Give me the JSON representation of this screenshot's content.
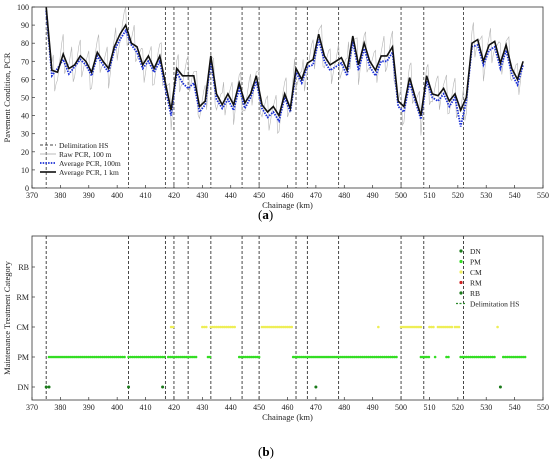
{
  "panel_a": {
    "label_open": "(",
    "label_letter": "a",
    "label_close": ")",
    "legend": {
      "items": [
        {
          "label": "Delimitation HS",
          "color": "#444444"
        },
        {
          "label": "Raw PCR, 100 m",
          "color": "#aaaaaa"
        },
        {
          "label": "Average PCR, 100m",
          "color": "#1a2fd6"
        },
        {
          "label": "Average PCR, 1 km",
          "color": "#000000"
        }
      ]
    }
  },
  "panel_b": {
    "label_open": "(",
    "label_letter": "b",
    "label_close": ")",
    "legend": {
      "items": [
        {
          "label": "DN",
          "color": "#1a7a1a"
        },
        {
          "label": "PM",
          "color": "#33dd22"
        },
        {
          "label": "CM",
          "color": "#f0f060"
        },
        {
          "label": "RM",
          "color": "#d02020"
        },
        {
          "label": "RB",
          "color": "#1a7a1a"
        },
        {
          "label": "Delimitation HS",
          "color": "#2a8a2a"
        }
      ]
    }
  },
  "chart_data": [
    {
      "type": "line",
      "xlabel": "Chainage (km)",
      "ylabel": "Pavement Condition, PCR",
      "xlim": [
        370,
        550
      ],
      "ylim": [
        0,
        100
      ],
      "xticks": [
        370,
        380,
        390,
        400,
        410,
        420,
        430,
        440,
        450,
        460,
        470,
        480,
        490,
        500,
        510,
        520,
        530,
        540,
        550
      ],
      "yticks": [
        0,
        10,
        20,
        30,
        40,
        50,
        60,
        70,
        80,
        90,
        100
      ],
      "grid": false,
      "legend_position": "bottom-left",
      "delimitation_hs": [
        375,
        404,
        417,
        420,
        425,
        433,
        444,
        450,
        463,
        467,
        478,
        500,
        508,
        522
      ],
      "series": [
        {
          "name": "Average PCR, 1 km",
          "x": [
            375,
            377,
            379,
            381,
            383,
            385,
            387,
            389,
            391,
            393,
            395,
            397,
            399,
            401,
            403,
            405,
            407,
            409,
            411,
            413,
            415,
            417,
            419,
            421,
            423,
            425,
            427,
            429,
            431,
            433,
            435,
            437,
            439,
            441,
            443,
            445,
            447,
            449,
            451,
            453,
            455,
            457,
            459,
            461,
            463,
            465,
            467,
            469,
            471,
            473,
            475,
            477,
            479,
            481,
            483,
            485,
            487,
            489,
            491,
            493,
            495,
            497,
            499,
            501,
            503,
            505,
            507,
            509,
            511,
            513,
            515,
            517,
            519,
            521,
            523,
            525,
            527,
            529,
            531,
            533,
            535,
            537,
            539,
            541,
            543
          ],
          "y": [
            100,
            65,
            64,
            74,
            66,
            68,
            73,
            70,
            64,
            75,
            70,
            66,
            78,
            85,
            90,
            80,
            78,
            68,
            73,
            66,
            73,
            58,
            43,
            66,
            62,
            62,
            62,
            45,
            48,
            73,
            52,
            46,
            52,
            46,
            58,
            47,
            52,
            62,
            46,
            42,
            45,
            40,
            52,
            44,
            66,
            60,
            69,
            71,
            85,
            73,
            68,
            70,
            72,
            65,
            84,
            68,
            80,
            70,
            65,
            73,
            73,
            78,
            48,
            45,
            61,
            50,
            40,
            62,
            52,
            51,
            55,
            48,
            52,
            43,
            50,
            80,
            82,
            70,
            79,
            81,
            69,
            79,
            66,
            60,
            70
          ]
        },
        {
          "name": "Average PCR, 100m",
          "x": [
            375,
            377,
            379,
            381,
            383,
            385,
            387,
            389,
            391,
            393,
            395,
            397,
            399,
            401,
            403,
            405,
            407,
            409,
            411,
            413,
            415,
            417,
            419,
            421,
            423,
            425,
            427,
            429,
            431,
            433,
            435,
            437,
            439,
            441,
            443,
            445,
            447,
            449,
            451,
            453,
            455,
            457,
            459,
            461,
            463,
            465,
            467,
            469,
            471,
            473,
            475,
            477,
            479,
            481,
            483,
            485,
            487,
            489,
            491,
            493,
            495,
            497,
            499,
            501,
            503,
            505,
            507,
            509,
            511,
            513,
            515,
            517,
            519,
            521,
            523,
            525,
            527,
            529,
            531,
            533,
            535,
            537,
            539,
            541,
            543
          ],
          "y": [
            98,
            62,
            66,
            71,
            63,
            67,
            71,
            68,
            62,
            73,
            68,
            64,
            76,
            82,
            87,
            79,
            75,
            66,
            70,
            64,
            70,
            55,
            40,
            64,
            58,
            55,
            58,
            42,
            46,
            70,
            49,
            44,
            49,
            43,
            55,
            44,
            50,
            59,
            44,
            39,
            42,
            37,
            50,
            42,
            64,
            58,
            67,
            68,
            82,
            70,
            65,
            67,
            69,
            62,
            81,
            65,
            77,
            67,
            62,
            70,
            70,
            75,
            45,
            42,
            58,
            48,
            38,
            59,
            50,
            48,
            52,
            45,
            50,
            34,
            48,
            78,
            79,
            68,
            76,
            78,
            66,
            76,
            63,
            57,
            68
          ]
        }
      ]
    },
    {
      "type": "scatter",
      "xlabel": "Chainage (km)",
      "ylabel": "Maintenance Treatment Category",
      "xlim": [
        370,
        550
      ],
      "xticks": [
        370,
        380,
        390,
        400,
        410,
        420,
        430,
        440,
        450,
        460,
        470,
        480,
        490,
        500,
        510,
        520,
        530,
        540,
        550
      ],
      "categories": [
        "DN",
        "PM",
        "CM",
        "RM",
        "RB"
      ],
      "grid": false,
      "legend_position": "top-right",
      "delimitation_hs": [
        375,
        404,
        417,
        420,
        425,
        433,
        444,
        450,
        463,
        467,
        478,
        500,
        508,
        522
      ],
      "series": [
        {
          "name": "DN",
          "points": [
            [
              375,
              "DN"
            ],
            [
              376,
              "DN"
            ],
            [
              404,
              "DN"
            ],
            [
              416,
              "DN"
            ],
            [
              470,
              "DN"
            ],
            [
              535,
              "DN"
            ]
          ]
        },
        {
          "name": "PM",
          "ranges": [
            [
              376,
              403
            ],
            [
              404,
              417
            ],
            [
              418,
              428
            ],
            [
              432,
              433
            ],
            [
              443,
              450
            ],
            [
              462,
              499
            ],
            [
              507,
              510
            ],
            [
              512,
              512
            ],
            [
              516,
              517
            ],
            [
              521,
              533
            ],
            [
              536,
              544
            ]
          ]
        },
        {
          "name": "CM",
          "ranges": [
            [
              419,
              420
            ],
            [
              430,
              432
            ],
            [
              433,
              442
            ],
            [
              451,
              462
            ],
            [
              492,
              492
            ],
            [
              500,
              507
            ],
            [
              510,
              512
            ],
            [
              513,
              518
            ],
            [
              519,
              521
            ],
            [
              534,
              534
            ]
          ]
        }
      ]
    }
  ]
}
